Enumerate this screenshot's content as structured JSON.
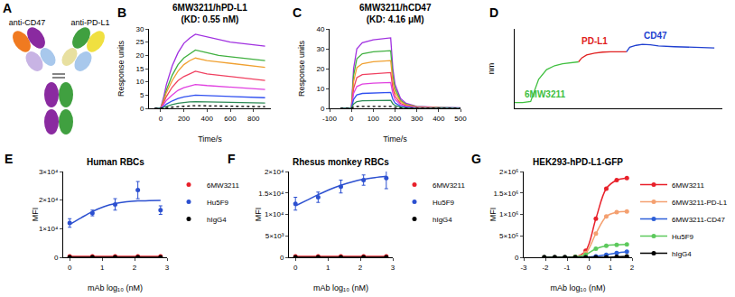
{
  "diagram": {
    "label": "A",
    "texts": [
      "anti-CD47",
      "anti-PD-L1"
    ]
  },
  "chart_data": [
    {
      "label": "B",
      "type": "line",
      "title": "6MW3211/hPD-L1",
      "subtitle": "(KD: 0.55 nM)",
      "x_label": "Time/s",
      "y_label": "Response units",
      "grid": false,
      "xlim": [
        -100,
        950
      ],
      "xticks": [
        0,
        200,
        400,
        600,
        800
      ],
      "ylim": [
        0,
        30
      ],
      "yticks": [
        0,
        5,
        10,
        15,
        20,
        25,
        30
      ],
      "x": [
        -50,
        0,
        25,
        50,
        100,
        150,
        200,
        250,
        300,
        400,
        500,
        600,
        700,
        800,
        900
      ],
      "series": [
        {
          "color": "#a030e0",
          "values": [
            0,
            0,
            4,
            9,
            16,
            21,
            24.5,
            26.5,
            28,
            27,
            26,
            25,
            24.5,
            24,
            23.5
          ]
        },
        {
          "color": "#40b040",
          "values": [
            0,
            0,
            3,
            7,
            12.5,
            16.5,
            19,
            20.5,
            22,
            21,
            20,
            19.5,
            19,
            18.5,
            18
          ]
        },
        {
          "color": "#f0a030",
          "values": [
            0,
            0,
            2.7,
            6,
            10.5,
            14,
            16.5,
            18,
            19,
            18,
            17.5,
            17,
            16.5,
            16,
            15.5
          ]
        },
        {
          "color": "#f04060",
          "values": [
            0,
            0,
            2,
            4.5,
            8,
            10.5,
            12,
            13,
            14,
            13,
            12.5,
            12,
            11.5,
            11,
            10.5
          ]
        },
        {
          "color": "#e040e0",
          "values": [
            0,
            0,
            1.3,
            3,
            5,
            6.8,
            7.8,
            8.5,
            9,
            8.6,
            8.3,
            8,
            7.7,
            7.4,
            7.1
          ]
        },
        {
          "color": "#3050f0",
          "values": [
            0,
            0,
            0.7,
            1.6,
            2.8,
            3.7,
            4.3,
            4.7,
            5,
            4.8,
            4.6,
            4.5,
            4.3,
            4.2,
            4
          ]
        },
        {
          "color": "#2e8b57",
          "values": [
            0,
            0,
            0.4,
            0.8,
            1.4,
            1.9,
            2.2,
            2.4,
            2.5,
            2.4,
            2.3,
            2.2,
            2.1,
            2.1,
            2
          ]
        },
        {
          "color": "#000000",
          "line_style": "dot",
          "values": [
            0,
            0,
            0.1,
            0.3,
            0.5,
            0.7,
            0.8,
            0.9,
            1,
            0.9,
            0.8,
            0.7,
            0.7,
            0.6,
            0.6
          ]
        }
      ]
    },
    {
      "label": "C",
      "type": "line",
      "title": "6MW3211/hCD47",
      "subtitle": "(KD: 4.16 μM)",
      "x_label": "Time/s",
      "y_label": "Response units",
      "grid": false,
      "xlim": [
        -100,
        500
      ],
      "xticks": [
        -100,
        0,
        100,
        200,
        300,
        400,
        500
      ],
      "ylim": [
        0,
        40
      ],
      "yticks": [
        0,
        10,
        20,
        30,
        40
      ],
      "x": [
        -50,
        0,
        10,
        25,
        50,
        100,
        180,
        190,
        200,
        225,
        250,
        300,
        400,
        500
      ],
      "series": [
        {
          "color": "#a030e0",
          "values": [
            0,
            0,
            20,
            30,
            33,
            34.5,
            35.5,
            20,
            12,
            5,
            2.5,
            1,
            0.5,
            0.3
          ]
        },
        {
          "color": "#40b040",
          "values": [
            0,
            0,
            16.5,
            25,
            27.5,
            28.5,
            29,
            16.5,
            10,
            4,
            2,
            0.8,
            0.4,
            0.2
          ]
        },
        {
          "color": "#f0a030",
          "values": [
            0,
            0,
            13.5,
            20.5,
            22.5,
            23.5,
            24,
            13.5,
            8,
            3.5,
            1.7,
            0.7,
            0.3,
            0.2
          ]
        },
        {
          "color": "#f04060",
          "values": [
            0,
            0,
            10,
            15.5,
            17,
            17.5,
            18,
            10,
            6,
            2.5,
            1.3,
            0.5,
            0.3,
            0.1
          ]
        },
        {
          "color": "#e040e0",
          "values": [
            0,
            0,
            7.5,
            11,
            12.2,
            12.7,
            13,
            7.5,
            4.5,
            1.8,
            0.9,
            0.4,
            0.2,
            0.1
          ]
        },
        {
          "color": "#3050f0",
          "values": [
            0,
            0,
            4.5,
            6.8,
            7.5,
            7.8,
            8,
            4.5,
            2.7,
            1.1,
            0.6,
            0.2,
            0.1,
            0
          ]
        },
        {
          "color": "#2e8b57",
          "values": [
            0,
            0,
            2.2,
            3.4,
            3.8,
            3.9,
            4,
            2.3,
            1.4,
            0.6,
            0.3,
            0.1,
            0.1,
            0
          ]
        },
        {
          "color": "#000000",
          "line_style": "dot",
          "values": [
            0,
            0,
            0.6,
            0.9,
            1,
            1,
            1,
            0.6,
            0.4,
            0.2,
            0.1,
            0,
            0,
            0
          ]
        }
      ]
    },
    {
      "label": "D",
      "type": "line",
      "y_label": "nm",
      "grid": false,
      "tick_labels": false,
      "xlim": [
        0,
        1300
      ],
      "ylim": [
        -0.3,
        3.8
      ],
      "series": [
        {
          "color": "#40c040",
          "x": [
            0,
            50,
            100,
            150,
            200,
            250,
            300,
            350,
            400
          ],
          "values": [
            0,
            0,
            0.05,
            1.2,
            1.7,
            1.9,
            2.0,
            2.05,
            2.1
          ]
        },
        {
          "color": "#e02020",
          "x": [
            400,
            420,
            450,
            500,
            550,
            600,
            700
          ],
          "values": [
            2.1,
            2.3,
            2.45,
            2.55,
            2.6,
            2.62,
            2.62
          ]
        },
        {
          "color": "#2040d0",
          "x": [
            700,
            720,
            760,
            800,
            850,
            900,
            1000,
            1100,
            1250
          ],
          "values": [
            2.62,
            2.85,
            2.95,
            3.0,
            2.98,
            2.92,
            2.88,
            2.85,
            2.82
          ]
        }
      ],
      "annotations": [
        {
          "text": "6MW3211",
          "x": 190,
          "y": 0.4,
          "color": "#40c040"
        },
        {
          "text": "PD-L1",
          "x": 500,
          "y": 3.15,
          "color": "#e02020"
        },
        {
          "text": "CD47",
          "x": 880,
          "y": 3.45,
          "color": "#2040d0"
        }
      ]
    },
    {
      "label": "E",
      "type": "scatter",
      "title": "Human RBCs",
      "x_label": "mAb log₁₀ (nM)",
      "y_label": "MFI",
      "grid": false,
      "legend": "right",
      "xlim": [
        -0.2,
        3
      ],
      "xticks": [
        0,
        1,
        2,
        3
      ],
      "ylim": [
        0,
        30000
      ],
      "yticks": [
        0,
        {
          "value": 10000,
          "label": "1×10⁴"
        },
        {
          "value": 20000,
          "label": "2×10⁴"
        },
        {
          "value": 30000,
          "label": "3×10⁴"
        }
      ],
      "x": [
        0,
        0.7,
        1.4,
        2.1,
        2.8
      ],
      "fit_x": [
        0,
        0.35,
        0.7,
        1.05,
        1.4,
        1.75,
        2.1,
        2.45,
        2.8
      ],
      "series": [
        {
          "name": "6MW3211",
          "color": "#e8202a",
          "values": [
            300,
            300,
            300,
            300,
            300
          ],
          "fit": [
            300,
            300,
            300,
            300,
            300,
            300,
            300,
            300,
            300
          ]
        },
        {
          "name": "Hu5F9",
          "color": "#2c50d0",
          "values": [
            12000,
            15500,
            18500,
            23500,
            16500
          ],
          "errors": [
            1500,
            1000,
            2000,
            3000,
            1500
          ],
          "fit": [
            11500,
            13800,
            16000,
            17700,
            18800,
            19400,
            19700,
            19800,
            19900
          ]
        },
        {
          "name": "hIgG4",
          "color": "#000000",
          "values": [
            0,
            0,
            0,
            0,
            0
          ],
          "fit": [
            0,
            0,
            0,
            0,
            0,
            0,
            0,
            0,
            0
          ]
        }
      ]
    },
    {
      "label": "F",
      "type": "scatter",
      "title": "Rhesus monkey RBCs",
      "x_label": "mAb log₁₀ (nM)",
      "y_label": "MFI",
      "grid": false,
      "legend": "right",
      "xlim": [
        -0.2,
        3
      ],
      "xticks": [
        0,
        1,
        2,
        3
      ],
      "ylim": [
        0,
        20000
      ],
      "yticks": [
        0,
        {
          "value": 5000,
          "label": "5×10³"
        },
        {
          "value": 10000,
          "label": "1×10⁴"
        },
        {
          "value": 15000,
          "label": "1.5×10⁴"
        },
        {
          "value": 20000,
          "label": "2×10⁴"
        }
      ],
      "x": [
        0,
        0.7,
        1.4,
        2.1,
        2.8
      ],
      "fit_x": [
        0,
        0.35,
        0.7,
        1.05,
        1.4,
        1.75,
        2.1,
        2.45,
        2.8
      ],
      "series": [
        {
          "name": "6MW3211",
          "color": "#e8202a",
          "values": [
            200,
            200,
            200,
            200,
            200
          ],
          "fit": [
            200,
            200,
            200,
            200,
            200,
            200,
            200,
            200,
            200
          ]
        },
        {
          "name": "Hu5F9",
          "color": "#2c50d0",
          "values": [
            12500,
            14000,
            16500,
            18000,
            18500
          ],
          "errors": [
            1500,
            1200,
            1500,
            1200,
            2500
          ],
          "fit": [
            12000,
            13300,
            14600,
            15800,
            16800,
            17600,
            18200,
            18600,
            18900
          ]
        },
        {
          "name": "hIgG4",
          "color": "#000000",
          "values": [
            0,
            0,
            0,
            0,
            0
          ],
          "fit": [
            0,
            0,
            0,
            0,
            0,
            0,
            0,
            0,
            0
          ]
        }
      ]
    },
    {
      "label": "G",
      "type": "scatter",
      "title": "HEK293-hPD-L1-GFP",
      "x_label": "mAb log₁₀ (nM)",
      "y_label": "MFI",
      "grid": false,
      "legend": "right",
      "line_style": "spline",
      "xlim": [
        -3,
        2
      ],
      "xticks": [
        -3,
        -2,
        -1,
        0,
        1,
        2
      ],
      "ylim": [
        0,
        2000000
      ],
      "yticks": [
        0,
        {
          "value": 500000,
          "label": "5×10⁵"
        },
        {
          "value": 1000000,
          "label": "1×10⁶"
        },
        {
          "value": 1500000,
          "label": "1.5×10⁶"
        },
        {
          "value": 2000000,
          "label": "2×10⁶"
        }
      ],
      "x": [
        -2.05,
        -1.57,
        -1.1,
        -0.62,
        -0.14,
        0.33,
        0.81,
        1.29,
        1.76
      ],
      "series": [
        {
          "name": "6MW3211",
          "color": "#e8202a",
          "values": [
            0,
            0,
            0,
            10000,
            150000,
            900000,
            1600000,
            1800000,
            1850000
          ]
        },
        {
          "name": "6MW3211-PD-L1",
          "color": "#f4a070",
          "values": [
            0,
            0,
            0,
            10000,
            100000,
            550000,
            950000,
            1050000,
            1070000
          ]
        },
        {
          "name": "6MW3211-CD47",
          "color": "#2c5fd8",
          "values": [
            0,
            0,
            0,
            0,
            0,
            20000,
            60000,
            100000,
            130000
          ]
        },
        {
          "name": "Hu5F9",
          "color": "#5cc95c",
          "values": [
            0,
            0,
            0,
            10000,
            60000,
            200000,
            270000,
            290000,
            300000
          ]
        },
        {
          "name": "hIgG4",
          "color": "#000000",
          "values": [
            0,
            0,
            0,
            0,
            0,
            0,
            0,
            10000,
            20000
          ]
        }
      ]
    }
  ]
}
